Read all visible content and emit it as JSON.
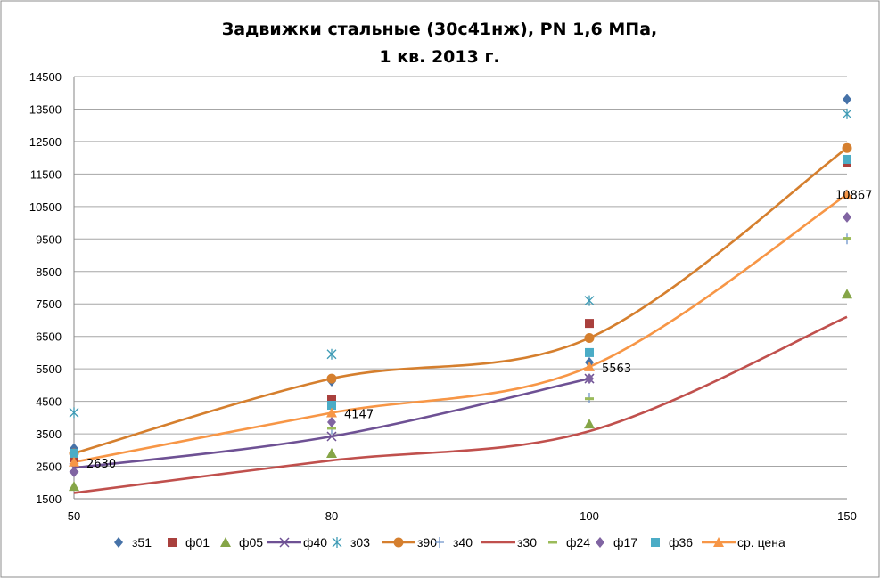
{
  "chart_data": {
    "type": "line",
    "title_line1": "Задвижки стальные (30с41нж),  PN 1,6 МПа,",
    "title_line2": "1 кв. 2013 г.",
    "xlabel": "",
    "ylabel": "",
    "categories": [
      "50",
      "80",
      "100",
      "150"
    ],
    "ylim": [
      1500,
      14500
    ],
    "yticks": [
      "1500",
      "2500",
      "3500",
      "4500",
      "5500",
      "6500",
      "7500",
      "8500",
      "9500",
      "10500",
      "11500",
      "12500",
      "13500",
      "14500"
    ],
    "grid": true,
    "legend_position": "bottom",
    "series": [
      {
        "name": "з51",
        "color": "#4672A8",
        "marker": "diamond",
        "line": false,
        "values": [
          3050,
          5120,
          5700,
          13800
        ]
      },
      {
        "name": "ф01",
        "color": "#A9403D",
        "marker": "square",
        "line": false,
        "values": [
          2760,
          4570,
          6900,
          11840
        ]
      },
      {
        "name": "ф05",
        "color": "#85A547",
        "marker": "triangle",
        "line": false,
        "values": [
          1880,
          2900,
          3800,
          7800
        ]
      },
      {
        "name": "ф40",
        "color": "#6E5194",
        "marker": "x",
        "line": true,
        "values": [
          2450,
          3420,
          5200,
          null
        ]
      },
      {
        "name": "з03",
        "color": "#3F9BB5",
        "marker": "star",
        "line": false,
        "values": [
          4150,
          5950,
          7600,
          13350
        ]
      },
      {
        "name": "з90",
        "color": "#D57F2E",
        "marker": "circle",
        "line": true,
        "values": [
          2900,
          5200,
          6450,
          12300
        ]
      },
      {
        "name": "з40",
        "color": "#6F95CB",
        "marker": "plus",
        "line": false,
        "values": [
          null,
          3650,
          4600,
          9500
        ]
      },
      {
        "name": "з30",
        "color": "#C0504D",
        "marker": "none",
        "line": true,
        "values": [
          1680,
          2680,
          3580,
          7100
        ]
      },
      {
        "name": "ф24",
        "color": "#9BBB59",
        "marker": "dash",
        "line": false,
        "values": [
          null,
          3670,
          4580,
          9520
        ]
      },
      {
        "name": "ф17",
        "color": "#8064A2",
        "marker": "diamond",
        "line": false,
        "values": [
          2320,
          3860,
          5200,
          10170
        ]
      },
      {
        "name": "ф36",
        "color": "#4BACC6",
        "marker": "square",
        "line": false,
        "values": [
          2900,
          4380,
          6000,
          11950
        ]
      },
      {
        "name": "ср. цена",
        "color": "#F79646",
        "marker": "triangle",
        "line": true,
        "values": [
          2630,
          4147,
          5563,
          10867
        ],
        "data_labels": [
          "2630",
          "4147",
          "5563",
          "10867"
        ]
      }
    ]
  }
}
